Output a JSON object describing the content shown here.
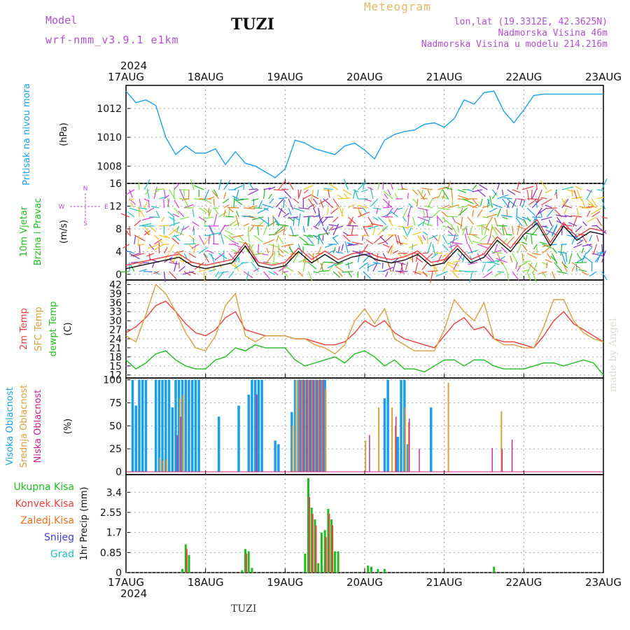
{
  "header": {
    "model_label": "Model",
    "model_name": "wrf-nmm_v3.9.1 e1km",
    "station": "TUZI",
    "title": "Meteogram",
    "location_lines": [
      "lon,lat (19.3312E, 42.3625N)",
      "Nadmorska Visina 46m",
      "Nadmorska Visina u modelu 214.216m"
    ]
  },
  "footer": {
    "station": "TUZI",
    "credit": "made by Angel"
  },
  "colors": {
    "pressure": "#1aa0e8",
    "wind_title": "#22bb22",
    "temp2m": "#e84040",
    "sfc_temp": "#d8a040",
    "dewpt": "#22bb22",
    "cloud_high": "#1aa0e8",
    "cloud_mid": "#d8a040",
    "cloud_low": "#cc2288",
    "rain_total": "#22bb22",
    "rain_conv": "#e84040",
    "rain_frz": "#e87020",
    "snow": "#4040d0",
    "hail": "#20c0c0",
    "purple": "#b050d0"
  },
  "chart_data": [
    {
      "type": "line",
      "panel": "pressure",
      "title": "Pritisak na nivou mora",
      "ylabel": "(hPa)",
      "ylim": [
        1006.8,
        1013.6
      ],
      "yticks": [
        "1008",
        "1010",
        "1012"
      ],
      "x_ticks_top": [
        "17AUG",
        "18AUG",
        "19AUG",
        "20AUG",
        "21AUG",
        "22AUG",
        "23AUG"
      ],
      "year": "2024",
      "series": [
        {
          "x_hours": [
            0,
            3,
            6,
            9,
            12,
            15,
            18,
            21,
            24,
            27,
            30,
            33,
            36,
            39,
            42,
            45,
            48,
            51,
            54,
            57,
            60,
            63,
            66,
            69,
            72,
            75,
            78,
            81,
            84,
            87,
            90,
            93,
            96,
            99,
            102,
            105,
            108,
            111,
            114,
            117,
            120,
            123,
            126,
            129,
            132,
            135,
            138,
            141,
            144
          ],
          "values": [
            1013.2,
            1012.4,
            1012.6,
            1012.2,
            1010.0,
            1008.8,
            1009.4,
            1008.9,
            1008.9,
            1009.2,
            1008.1,
            1009.0,
            1008.2,
            1008.0,
            1007.6,
            1007.2,
            1007.8,
            1009.8,
            1009.6,
            1009.2,
            1009.0,
            1008.8,
            1009.4,
            1009.6,
            1009.1,
            1008.5,
            1009.8,
            1010.2,
            1010.4,
            1010.5,
            1010.9,
            1011.0,
            1010.7,
            1011.3,
            1012.6,
            1012.3,
            1013.1,
            1013.2,
            1011.8,
            1011.0,
            1011.9,
            1012.9,
            1013.0,
            1013.0,
            1013.0,
            1013.0,
            1013.0,
            1013.0,
            1013.0
          ]
        }
      ]
    },
    {
      "type": "line",
      "panel": "wind",
      "title_lines": [
        "10m Vjetar",
        "Brzina i Pravac"
      ],
      "ylabel": "(m/s)",
      "compass": [
        "N",
        "E",
        "S",
        "W"
      ],
      "ylim": [
        -1,
        16
      ],
      "yticks": [
        "0",
        "4",
        "8",
        "12",
        "16"
      ],
      "series": [
        {
          "name": "speed",
          "x_hours": [
            0,
            4,
            8,
            12,
            16,
            20,
            24,
            28,
            32,
            36,
            40,
            44,
            48,
            52,
            56,
            60,
            64,
            68,
            72,
            76,
            80,
            84,
            88,
            92,
            96,
            100,
            104,
            108,
            112,
            116,
            120,
            124,
            128,
            132,
            136,
            140,
            144
          ],
          "values": [
            1.0,
            1.5,
            2.0,
            2.5,
            3.0,
            1.5,
            1.0,
            1.5,
            2.0,
            5.0,
            1.5,
            1.0,
            1.5,
            4.0,
            2.0,
            3.5,
            2.0,
            3.0,
            3.5,
            2.5,
            2.0,
            2.5,
            3.5,
            1.5,
            2.0,
            4.5,
            2.0,
            3.0,
            6.0,
            4.0,
            7.0,
            9.0,
            5.0,
            8.5,
            6.0,
            7.5,
            7.0
          ]
        }
      ]
    },
    {
      "type": "line",
      "panel": "temperature",
      "title_lines": [
        "2m Temp",
        "SFC Temp",
        "dewpt Temp"
      ],
      "ylabel": "(C)",
      "ylim": [
        11,
        43.5
      ],
      "yticks": [
        "12",
        "15",
        "18",
        "21",
        "24",
        "27",
        "30",
        "33",
        "36",
        "39",
        "42"
      ],
      "x_hours": [
        0,
        3,
        6,
        9,
        12,
        15,
        18,
        21,
        24,
        27,
        30,
        33,
        36,
        39,
        42,
        45,
        48,
        51,
        54,
        57,
        60,
        63,
        66,
        69,
        72,
        75,
        78,
        81,
        84,
        87,
        90,
        93,
        96,
        99,
        102,
        105,
        108,
        111,
        114,
        117,
        120,
        123,
        126,
        129,
        132,
        135,
        138,
        141,
        144
      ],
      "series": [
        {
          "name": "2m Temp",
          "values": [
            26,
            28,
            31,
            35,
            36.5,
            33,
            29,
            26,
            25,
            27,
            31,
            33,
            27,
            26,
            25,
            25,
            25,
            24,
            24,
            23,
            22,
            22,
            23,
            26,
            30,
            28,
            30,
            26,
            24,
            23,
            22,
            21,
            25,
            29,
            31,
            27,
            28,
            24,
            23,
            23,
            22,
            21,
            25,
            30,
            33,
            29,
            27,
            25,
            23
          ]
        },
        {
          "name": "SFC Temp",
          "values": [
            25,
            23,
            32,
            42,
            39,
            33,
            26,
            21,
            20,
            25,
            35,
            39,
            25,
            23,
            25,
            25,
            25,
            24,
            24,
            22,
            21,
            19,
            22,
            30,
            34,
            29,
            34,
            24,
            22,
            20,
            20,
            20,
            27,
            37,
            33,
            30,
            36,
            24,
            22,
            22,
            21,
            21,
            28,
            37,
            37,
            30,
            26,
            24,
            23
          ]
        },
        {
          "name": "dewpt Temp",
          "values": [
            17,
            14,
            16,
            19,
            20,
            17,
            15,
            14,
            14,
            17,
            18,
            21,
            20,
            22,
            21,
            21,
            21,
            17,
            15,
            16,
            17,
            18,
            16,
            19,
            20,
            18,
            15,
            17,
            14,
            14,
            13,
            15,
            17,
            17,
            15,
            17,
            17,
            15,
            14,
            14,
            14,
            15,
            16,
            16,
            15,
            16,
            17,
            16,
            12
          ]
        }
      ]
    },
    {
      "type": "bar",
      "panel": "clouds",
      "title_lines": [
        "Visoka Oblacnost",
        "Srednja Oblacnost",
        "Niska Oblacnost"
      ],
      "ylabel": "(%)",
      "ylim": [
        -3,
        102
      ],
      "yticks": [
        "0",
        "25",
        "50",
        "75",
        "100"
      ],
      "series": [
        {
          "name": "Visoka Oblacnost",
          "x_hours": [
            2,
            3,
            4,
            5,
            6,
            9,
            10,
            11,
            12,
            13,
            14,
            15,
            16,
            17,
            18,
            19,
            20,
            21,
            22,
            28,
            34,
            37,
            38,
            39,
            40,
            41,
            45,
            46,
            50,
            51,
            52,
            53,
            54,
            55,
            56,
            57,
            58,
            59,
            60,
            65,
            66,
            67,
            78,
            79,
            82,
            83,
            84,
            85,
            92,
            93
          ],
          "values": [
            100,
            72,
            100,
            100,
            100,
            100,
            100,
            100,
            100,
            100,
            70,
            100,
            100,
            100,
            100,
            100,
            100,
            100,
            100,
            60,
            72,
            84,
            100,
            100,
            100,
            100,
            34,
            30,
            65,
            100,
            100,
            100,
            100,
            100,
            100,
            100,
            100,
            100,
            100,
            0,
            0,
            0,
            80,
            100,
            38,
            100,
            100,
            30,
            70,
            0
          ]
        },
        {
          "name": "Srednja Oblacnost",
          "x_hours": [
            10,
            11,
            12,
            16,
            17,
            50,
            51,
            52,
            53,
            54,
            55,
            56,
            57,
            58,
            59,
            60,
            72,
            76,
            80,
            81,
            84,
            85,
            97,
            113
          ],
          "values": [
            15,
            12,
            14,
            80,
            84,
            50,
            100,
            100,
            100,
            100,
            100,
            100,
            100,
            100,
            100,
            90,
            34,
            70,
            70,
            50,
            70,
            54,
            97,
            66
          ]
        },
        {
          "name": "Niska Oblacnost",
          "x_hours": [
            15,
            16,
            39,
            52,
            53,
            54,
            55,
            56,
            57,
            58,
            59,
            67,
            73,
            81,
            85,
            88,
            110,
            113,
            116
          ],
          "values": [
            40,
            60,
            84,
            100,
            100,
            100,
            100,
            100,
            100,
            100,
            100,
            0,
            40,
            60,
            58,
            25,
            26,
            25,
            35
          ]
        }
      ]
    },
    {
      "type": "bar",
      "panel": "precip",
      "title_lines": [
        "Ukupna Kisa",
        "Konvek.Kisa",
        "Zaledj.Kisa",
        "Snijeg",
        "Grad"
      ],
      "ylabel": "1hr Precip (mm)",
      "ylim": [
        0,
        4.15
      ],
      "yticks": [
        "0",
        "0.85",
        "1.7",
        "2.55",
        "3.4"
      ],
      "x_ticks_bottom": [
        "17AUG",
        "18AUG",
        "19AUG",
        "20AUG",
        "21AUG",
        "22AUG",
        "23AUG"
      ],
      "year": "2024",
      "series": [
        {
          "name": "Ukupna Kisa",
          "x_hours": [
            17,
            18,
            19,
            35,
            36,
            37,
            38,
            54,
            55,
            56,
            57,
            58,
            59,
            60,
            61,
            62,
            63,
            64,
            73,
            74,
            76,
            78,
            111
          ],
          "values": [
            0.15,
            1.2,
            0.75,
            0.1,
            1.0,
            0.9,
            0.2,
            0.8,
            4.0,
            2.75,
            2.25,
            0.4,
            1.7,
            1.8,
            2.7,
            2.25,
            0.9,
            0.9,
            0.3,
            0.25,
            0.15,
            0.15,
            0.25
          ]
        },
        {
          "name": "Konvek.Kisa",
          "x_hours": [
            18,
            36,
            55,
            56,
            57,
            60,
            61,
            62
          ],
          "values": [
            1.0,
            0.8,
            3.2,
            2.5,
            2.0,
            1.5,
            2.5,
            2.0
          ]
        }
      ]
    }
  ]
}
